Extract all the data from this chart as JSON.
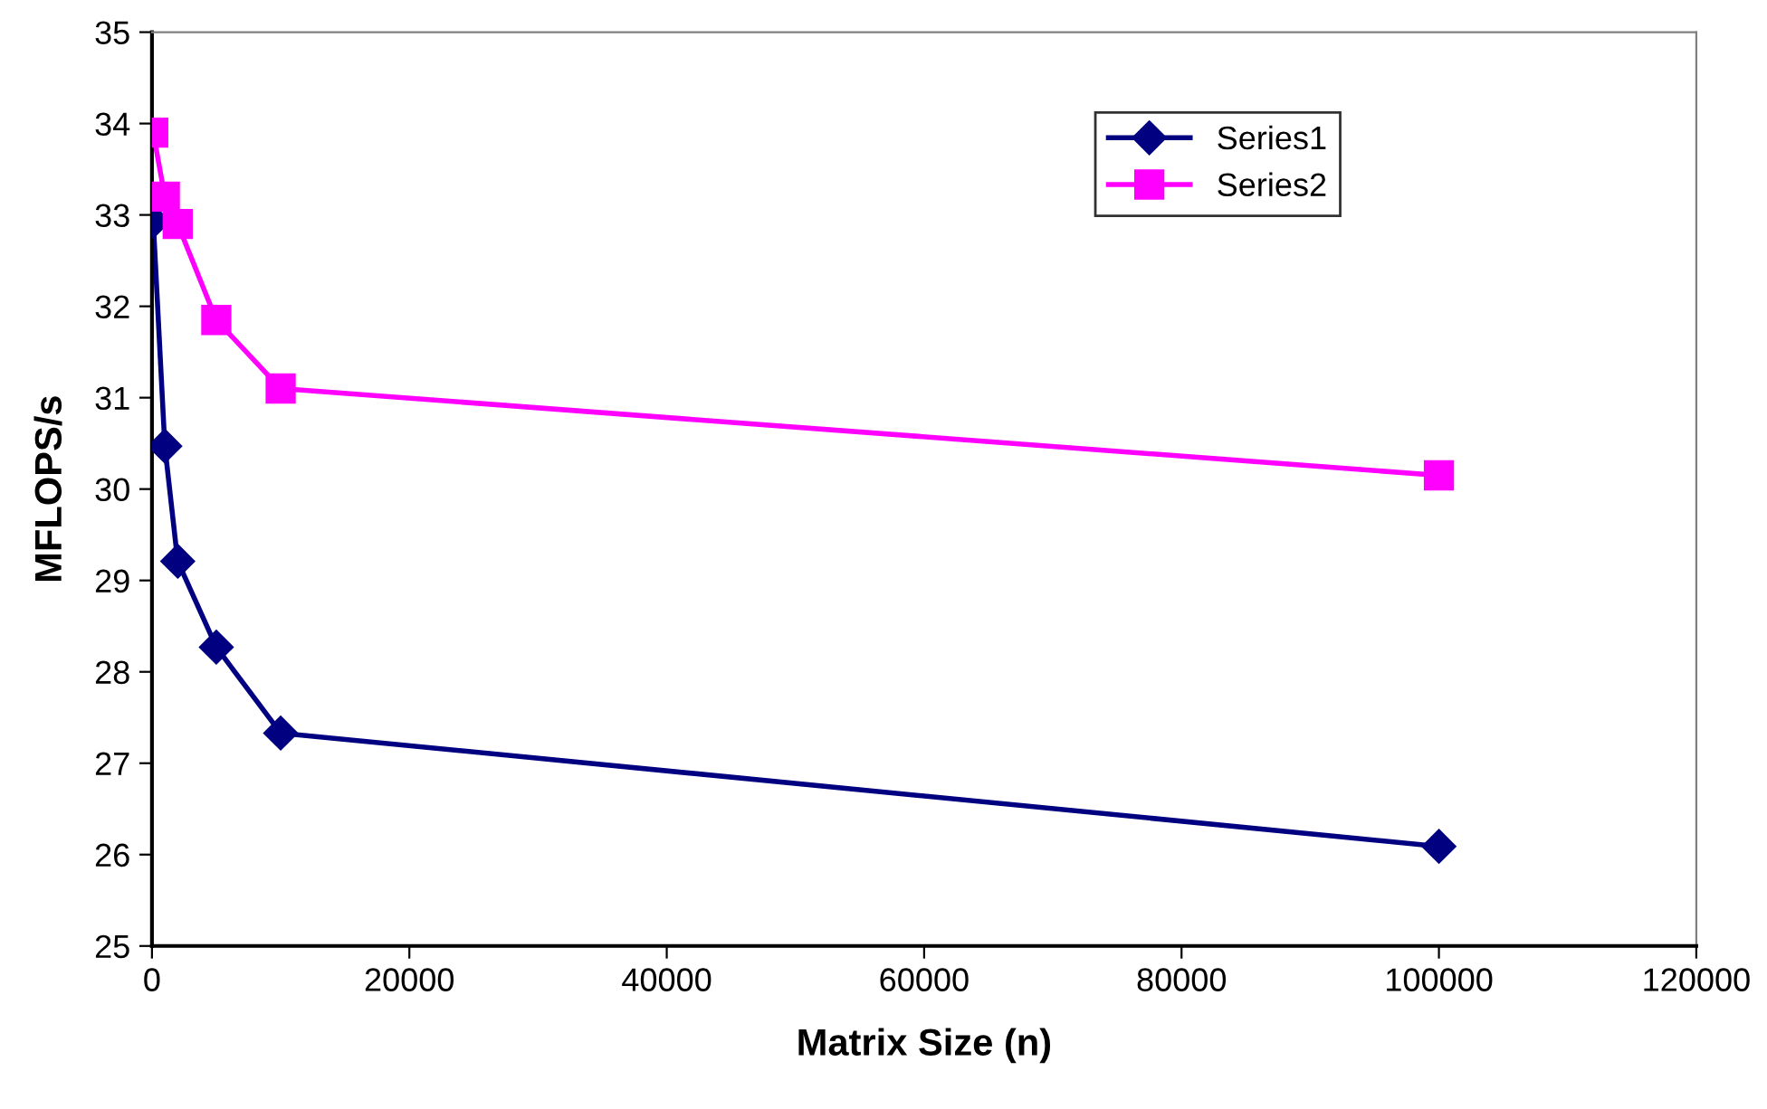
{
  "chart_data": {
    "type": "line",
    "xlabel": "Matrix Size (n)",
    "ylabel": "MFLOPS/s",
    "x": [
      100,
      1000,
      2000,
      5000,
      10000,
      100000
    ],
    "series": [
      {
        "name": "Series1",
        "color": "#000080",
        "marker": "diamond",
        "values": [
          32.93,
          30.47,
          29.21,
          28.27,
          27.33,
          26.09
        ]
      },
      {
        "name": "Series2",
        "color": "#ff00ff",
        "marker": "square",
        "values": [
          33.9,
          33.2,
          32.9,
          31.85,
          31.1,
          30.15
        ]
      }
    ],
    "xlim": [
      0,
      120000
    ],
    "xticks": [
      0,
      20000,
      40000,
      60000,
      80000,
      100000,
      120000
    ],
    "ylim": [
      25,
      35
    ],
    "yticks": [
      25,
      26,
      27,
      28,
      29,
      30,
      31,
      32,
      33,
      34,
      35
    ],
    "grid": false,
    "legend": "top right",
    "line_style": "solid"
  }
}
